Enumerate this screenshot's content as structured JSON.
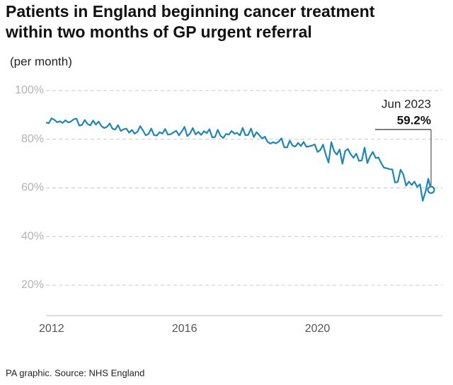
{
  "chart_data": {
    "type": "line",
    "title": "Patients in England beginning cancer treatment",
    "subtitle": "within two months of GP urgent referral",
    "y_label": "(per month)",
    "source": "PA graphic. Source: NHS England",
    "annotation": "Jun 2023",
    "color": "#1f86b3",
    "grid": true,
    "ylim": [
      7.5,
      100
    ],
    "yticks": [
      {
        "value": 20,
        "label": "20%"
      },
      {
        "value": 40,
        "label": "40%"
      },
      {
        "value": 60,
        "label": "60%"
      },
      {
        "value": 80,
        "label": "80%"
      },
      {
        "value": 100,
        "label": "100%"
      }
    ],
    "categories": [
      null,
      null,
      "2012",
      null,
      null,
      null,
      null,
      null,
      null,
      null,
      null,
      null,
      null,
      null,
      null,
      null,
      null,
      null,
      null,
      null,
      null,
      null,
      null,
      null,
      null,
      null,
      null,
      null,
      null,
      null,
      null,
      null,
      null,
      null,
      null,
      null,
      null,
      null,
      null,
      null,
      null,
      null,
      null,
      null,
      null,
      null,
      null,
      null,
      null,
      null,
      "2016",
      null,
      null,
      null,
      null,
      null,
      null,
      null,
      null,
      null,
      null,
      null,
      null,
      null,
      null,
      null,
      null,
      null,
      null,
      null,
      null,
      null,
      null,
      null,
      null,
      null,
      null,
      null,
      null,
      null,
      null,
      null,
      null,
      null,
      null,
      null,
      null,
      null,
      null,
      null,
      null,
      null,
      null,
      null,
      null,
      null,
      null,
      null,
      "2020",
      null,
      null,
      null,
      null,
      null,
      null,
      null,
      null,
      null,
      null,
      null,
      null,
      null,
      null,
      null,
      null,
      null,
      null,
      null,
      null,
      null,
      null,
      null,
      null,
      null,
      null,
      null,
      null,
      null,
      null,
      null,
      null,
      null,
      null,
      null,
      null,
      null,
      null,
      null,
      null,
      null
    ],
    "values": [
      86.9,
      86.6,
      88.6,
      88.0,
      87.0,
      87.4,
      86.7,
      87.8,
      86.9,
      87.3,
      88.2,
      88.5,
      85.6,
      85.9,
      87.9,
      86.3,
      85.7,
      87.7,
      86.0,
      87.3,
      85.4,
      84.6,
      85.1,
      86.5,
      84.3,
      84.0,
      85.8,
      83.4,
      84.1,
      84.4,
      82.7,
      83.8,
      82.3,
      83.1,
      85.4,
      83.6,
      81.6,
      82.2,
      84.4,
      81.7,
      81.5,
      82.9,
      82.3,
      84.2,
      81.9,
      82.1,
      82.8,
      83.5,
      81.6,
      83.2,
      85.1,
      81.3,
      82.4,
      84.6,
      82.0,
      83.0,
      81.8,
      83.3,
      82.5,
      84.1,
      80.8,
      80.9,
      83.9,
      81.4,
      80.5,
      82.2,
      81.9,
      83.4,
      82.3,
      82.6,
      81.6,
      84.7,
      81.6,
      81.8,
      84.4,
      80.9,
      82.9,
      81.7,
      80.3,
      81.1,
      78.9,
      78.2,
      78.8,
      78.3,
      79.0,
      80.4,
      76.7,
      76.6,
      79.4,
      77.4,
      77.0,
      78.5,
      77.2,
      78.9,
      76.9,
      77.1,
      77.4,
      77.9,
      74.8,
      75.5,
      77.8,
      73.6,
      70.4,
      78.8,
      75.1,
      73.7,
      75.8,
      69.9,
      75.2,
      76.0,
      73.8,
      72.4,
      74.1,
      71.1,
      71.3,
      76.6,
      70.2,
      73.0,
      74.8,
      72.3,
      72.5,
      70.2,
      68.3,
      68.1,
      67.7,
      67.6,
      62.2,
      62.5,
      67.5,
      65.5,
      60.9,
      62.6,
      61.2,
      62.6,
      60.4,
      61.5,
      54.7,
      58.4,
      63.8,
      59.2
    ],
    "value_labels": [
      null,
      null,
      null,
      null,
      null,
      null,
      null,
      null,
      null,
      null,
      null,
      null,
      null,
      null,
      null,
      null,
      null,
      null,
      null,
      null,
      null,
      null,
      null,
      null,
      null,
      null,
      null,
      null,
      null,
      null,
      null,
      null,
      null,
      null,
      null,
      null,
      null,
      null,
      null,
      null,
      null,
      null,
      null,
      null,
      null,
      null,
      null,
      null,
      null,
      null,
      null,
      null,
      null,
      null,
      null,
      null,
      null,
      null,
      null,
      null,
      null,
      null,
      null,
      null,
      null,
      null,
      null,
      null,
      null,
      null,
      null,
      null,
      null,
      null,
      null,
      null,
      null,
      null,
      null,
      null,
      null,
      null,
      null,
      null,
      null,
      null,
      null,
      null,
      null,
      null,
      null,
      null,
      null,
      null,
      null,
      null,
      null,
      null,
      null,
      null,
      null,
      null,
      null,
      null,
      null,
      null,
      null,
      null,
      null,
      null,
      null,
      null,
      null,
      null,
      null,
      null,
      null,
      null,
      null,
      null,
      null,
      null,
      null,
      null,
      null,
      null,
      null,
      null,
      null,
      null,
      null,
      null,
      null,
      null,
      null,
      null,
      null,
      null,
      null,
      "59.2%"
    ]
  }
}
